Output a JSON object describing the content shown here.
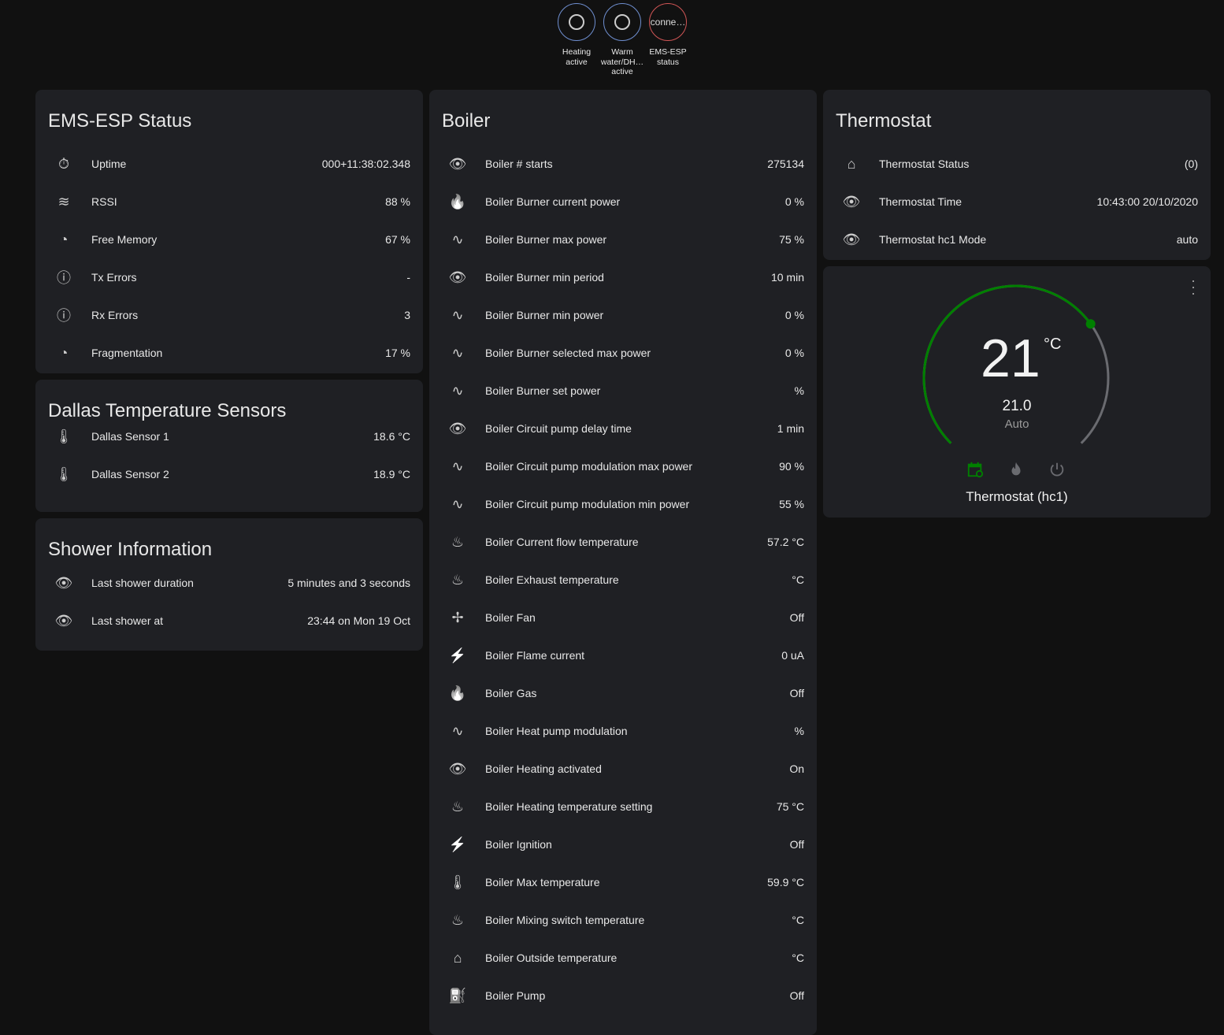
{
  "badges": [
    {
      "label": "Heating active",
      "state": "",
      "icon": "circle-outline",
      "color": "#6f8fd0"
    },
    {
      "label": "Warm water/DH… active",
      "state": "",
      "icon": "circle-outline",
      "color": "#6f8fd0"
    },
    {
      "label": "EMS-ESP status",
      "state": "conne…",
      "color": "#d05555"
    }
  ],
  "ems_status": {
    "title": "EMS-ESP Status",
    "rows": [
      {
        "icon": "timer-icon",
        "name": "Uptime",
        "value": "000+11:38:02.348"
      },
      {
        "icon": "wifi-icon",
        "name": "RSSI",
        "value": "88 %"
      },
      {
        "icon": "gauge-icon",
        "name": "Free Memory",
        "value": "67 %"
      },
      {
        "icon": "alert-circle-icon",
        "name": "Tx Errors",
        "value": "-"
      },
      {
        "icon": "alert-circle-icon",
        "name": "Rx Errors",
        "value": "3"
      },
      {
        "icon": "gauge-icon",
        "name": "Fragmentation",
        "value": "17 %"
      }
    ]
  },
  "dallas": {
    "title": "Dallas Temperature Sensors",
    "rows": [
      {
        "icon": "thermometer-icon",
        "name": "Dallas Sensor 1",
        "value": "18.6 °C"
      },
      {
        "icon": "thermometer-icon",
        "name": "Dallas Sensor 2",
        "value": "18.9 °C"
      }
    ]
  },
  "shower": {
    "title": "Shower Information",
    "rows": [
      {
        "icon": "eye-icon",
        "name": "Last shower duration",
        "value": "5 minutes and 3 seconds"
      },
      {
        "icon": "eye-icon",
        "name": "Last shower at",
        "value": "23:44 on Mon 19 Oct"
      }
    ]
  },
  "boiler": {
    "title": "Boiler",
    "rows": [
      {
        "icon": "eye-icon",
        "name": "Boiler # starts",
        "value": "275134"
      },
      {
        "icon": "fire-icon",
        "name": "Boiler Burner current power",
        "value": "0 %"
      },
      {
        "icon": "sine-wave-icon",
        "name": "Boiler Burner max power",
        "value": "75 %"
      },
      {
        "icon": "eye-icon",
        "name": "Boiler Burner min period",
        "value": "10 min"
      },
      {
        "icon": "sine-wave-icon",
        "name": "Boiler Burner min power",
        "value": "0 %"
      },
      {
        "icon": "sine-wave-icon",
        "name": "Boiler Burner selected max power",
        "value": "0 %"
      },
      {
        "icon": "sine-wave-icon",
        "name": "Boiler Burner set power",
        "value": "%"
      },
      {
        "icon": "eye-icon",
        "name": "Boiler Circuit pump delay time",
        "value": "1 min"
      },
      {
        "icon": "sine-wave-icon",
        "name": "Boiler Circuit pump modulation max power",
        "value": "90 %"
      },
      {
        "icon": "sine-wave-icon",
        "name": "Boiler Circuit pump modulation min power",
        "value": "55 %"
      },
      {
        "icon": "water-thermometer-icon",
        "name": "Boiler Current flow temperature",
        "value": "57.2 °C"
      },
      {
        "icon": "water-thermometer-icon",
        "name": "Boiler Exhaust temperature",
        "value": "°C"
      },
      {
        "icon": "fan-icon",
        "name": "Boiler Fan",
        "value": "Off"
      },
      {
        "icon": "flash-icon",
        "name": "Boiler Flame current",
        "value": "0 uA"
      },
      {
        "icon": "fire-icon",
        "name": "Boiler Gas",
        "value": "Off"
      },
      {
        "icon": "sine-wave-icon",
        "name": "Boiler Heat pump modulation",
        "value": "%"
      },
      {
        "icon": "eye-icon",
        "name": "Boiler Heating activated",
        "value": "On"
      },
      {
        "icon": "water-thermometer-icon",
        "name": "Boiler Heating temperature setting",
        "value": "75 °C"
      },
      {
        "icon": "flash-icon",
        "name": "Boiler Ignition",
        "value": "Off"
      },
      {
        "icon": "thermometer-icon",
        "name": "Boiler Max temperature",
        "value": "59.9 °C"
      },
      {
        "icon": "water-thermometer-icon",
        "name": "Boiler Mixing switch temperature",
        "value": "°C"
      },
      {
        "icon": "home-export-icon",
        "name": "Boiler Outside temperature",
        "value": "°C"
      },
      {
        "icon": "pump-icon",
        "name": "Boiler Pump",
        "value": "Off"
      }
    ]
  },
  "thermostat": {
    "title": "Thermostat",
    "rows": [
      {
        "icon": "home-thermometer-icon",
        "name": "Thermostat Status",
        "value": "(0)"
      },
      {
        "icon": "eye-icon",
        "name": "Thermostat Time",
        "value": "10:43:00 20/10/2020"
      },
      {
        "icon": "eye-icon",
        "name": "Thermostat hc1 Mode",
        "value": "auto"
      }
    ]
  },
  "climate": {
    "name": "Thermostat (hc1)",
    "target": "21",
    "unit": "°C",
    "current": "21.0",
    "mode": "Auto",
    "target_fraction": 0.7,
    "active_color": "#008000"
  }
}
